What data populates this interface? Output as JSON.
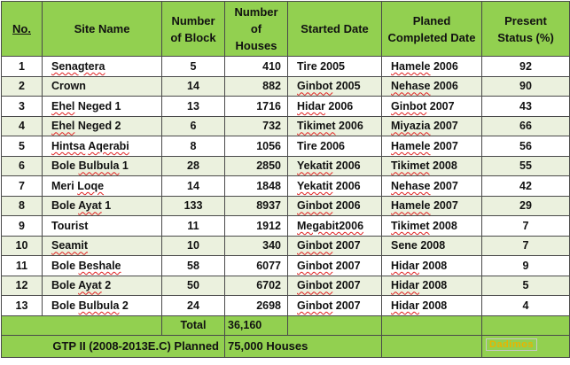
{
  "headers": {
    "no": "No.",
    "site_name": "Site Name",
    "blocks": "Number of Block",
    "houses": "Number of Houses",
    "started": "Started Date",
    "planned": "Planed Completed Date",
    "status": "Present Status (%)"
  },
  "rows": [
    {
      "no": "1",
      "site": "Senagtera",
      "blocks": "5",
      "houses": "410",
      "started": "Tire 2005",
      "planned": "Hamele 2006",
      "status": "92"
    },
    {
      "no": "2",
      "site": "Crown",
      "blocks": "14",
      "houses": "882",
      "started": "Ginbot 2005",
      "planned": "Nehase 2006",
      "status": "90"
    },
    {
      "no": "3",
      "site": "Ehel Neged 1",
      "blocks": "13",
      "houses": "1716",
      "started": "Hidar 2006",
      "planned": "Ginbot 2007",
      "status": "43"
    },
    {
      "no": "4",
      "site": "Ehel Neged 2",
      "blocks": "6",
      "houses": "732",
      "started": "Tikimet 2006",
      "planned": "Miyazia 2007",
      "status": "66"
    },
    {
      "no": "5",
      "site": "Hintsa Aqerabi",
      "blocks": "8",
      "houses": "1056",
      "started": "Tire 2006",
      "planned": "Hamele 2007",
      "status": "56"
    },
    {
      "no": "6",
      "site": "Bole Bulbula 1",
      "blocks": "28",
      "houses": "2850",
      "started": "Yekatit 2006",
      "planned": "Tikimet 2008",
      "status": "55"
    },
    {
      "no": "7",
      "site": "Meri Loqe",
      "blocks": "14",
      "houses": "1848",
      "started": "Yekatit 2006",
      "planned": "Nehase 2007",
      "status": "42"
    },
    {
      "no": "8",
      "site": "Bole Ayat 1",
      "blocks": "133",
      "houses": "8937",
      "started": "Ginbot 2006",
      "planned": "Hamele 2007",
      "status": "29"
    },
    {
      "no": "9",
      "site": "Tourist",
      "blocks": "11",
      "houses": "1912",
      "started": "Megabit2006",
      "planned": "Tikimet 2008",
      "status": "7"
    },
    {
      "no": "10",
      "site": "Seamit",
      "blocks": "10",
      "houses": "340",
      "started": "Ginbot 2007",
      "planned": "Sene 2008",
      "status": "7"
    },
    {
      "no": "11",
      "site": "Bole Beshale",
      "blocks": "58",
      "houses": "6077",
      "started": "Ginbot 2007",
      "planned": "Hidar 2008",
      "status": "9"
    },
    {
      "no": "12",
      "site": "Bole Ayat 2",
      "blocks": "50",
      "houses": "6702",
      "started": "Ginbot 2007",
      "planned": "Hidar 2008",
      "status": "5"
    },
    {
      "no": "13",
      "site": "Bole Bulbula 2",
      "blocks": "24",
      "houses": "2698",
      "started": "Ginbot 2007",
      "planned": "Hidar 2008",
      "status": "4"
    }
  ],
  "total": {
    "label": "Total",
    "houses": "36,160"
  },
  "gtp": {
    "label": "GTP II (2008-2013E.C) Planned",
    "value": "75,000 Houses"
  },
  "watermark": "Dadimos"
}
